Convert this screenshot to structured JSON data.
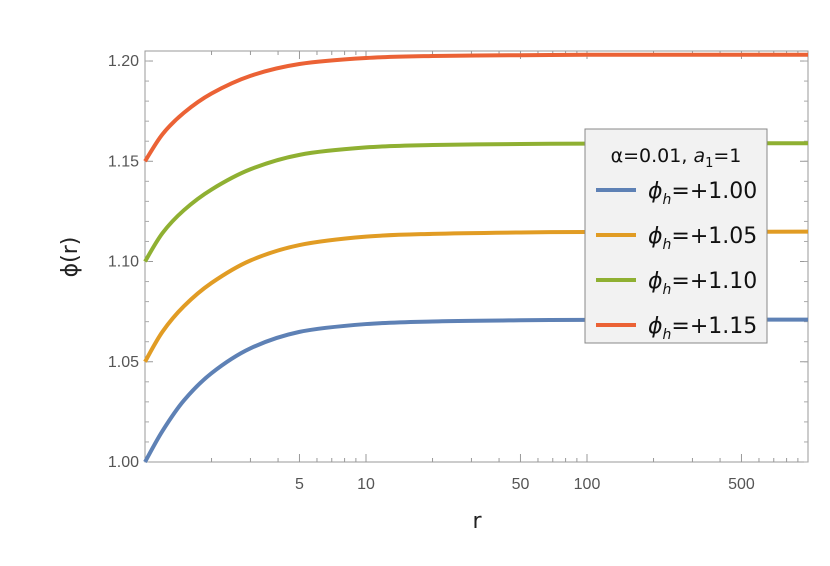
{
  "chart_data": {
    "type": "line",
    "xlabel": "r",
    "ylabel": "ϕ(r)",
    "x_scale": "log",
    "xlim": [
      1,
      1000
    ],
    "ylim": [
      1.0,
      1.205
    ],
    "x_ticks": [
      {
        "value": 5,
        "label": "5"
      },
      {
        "value": 10,
        "label": "10"
      },
      {
        "value": 50,
        "label": "50"
      },
      {
        "value": 100,
        "label": "100"
      },
      {
        "value": 500,
        "label": "500"
      }
    ],
    "y_ticks": [
      {
        "value": 1.0,
        "label": "1.00"
      },
      {
        "value": 1.05,
        "label": "1.05"
      },
      {
        "value": 1.1,
        "label": "1.10"
      },
      {
        "value": 1.15,
        "label": "1.15"
      },
      {
        "value": 1.2,
        "label": "1.20"
      }
    ],
    "legend": {
      "title_prefix": "α=0.01, ",
      "title_var": "a",
      "title_sub": "1",
      "title_suffix": "=1",
      "placement": "right"
    },
    "series": [
      {
        "name": "ϕh=+1.00",
        "sym": "ϕ",
        "sub": "h",
        "val": "=+1.00",
        "color": "#5e81b5",
        "x": [
          1,
          1.2,
          1.5,
          2,
          3,
          5,
          10,
          20,
          50,
          100,
          300,
          1000
        ],
        "y": [
          1.0,
          1.0155,
          1.0307,
          1.0443,
          1.0567,
          1.0649,
          1.0688,
          1.0701,
          1.0707,
          1.0709,
          1.071,
          1.071
        ]
      },
      {
        "name": "ϕh=+1.05",
        "sym": "ϕ",
        "sub": "h",
        "val": "=+1.05",
        "color": "#e19c24",
        "x": [
          1,
          1.2,
          1.5,
          2,
          3,
          5,
          10,
          20,
          50,
          100,
          300,
          1000
        ],
        "y": [
          1.05,
          1.065,
          1.0777,
          1.0893,
          1.1005,
          1.1082,
          1.1124,
          1.1138,
          1.1145,
          1.1147,
          1.1148,
          1.1149
        ]
      },
      {
        "name": "ϕh=+1.10",
        "sym": "ϕ",
        "sub": "h",
        "val": "=+1.10",
        "color": "#8fb032",
        "x": [
          1,
          1.2,
          1.5,
          2,
          3,
          5,
          10,
          20,
          50,
          100,
          300,
          1000
        ],
        "y": [
          1.1,
          1.1142,
          1.1256,
          1.1359,
          1.146,
          1.1532,
          1.1569,
          1.1581,
          1.1586,
          1.1588,
          1.1589,
          1.159
        ]
      },
      {
        "name": "ϕh=+1.15",
        "sym": "ϕ",
        "sub": "h",
        "val": "=+1.15",
        "color": "#eb6235",
        "x": [
          1,
          1.2,
          1.5,
          2,
          3,
          5,
          10,
          20,
          50,
          100,
          300,
          1000
        ],
        "y": [
          1.15,
          1.1635,
          1.1742,
          1.1838,
          1.1926,
          1.1985,
          1.2015,
          1.2025,
          1.2029,
          1.2031,
          1.2031,
          1.2031
        ]
      }
    ]
  }
}
